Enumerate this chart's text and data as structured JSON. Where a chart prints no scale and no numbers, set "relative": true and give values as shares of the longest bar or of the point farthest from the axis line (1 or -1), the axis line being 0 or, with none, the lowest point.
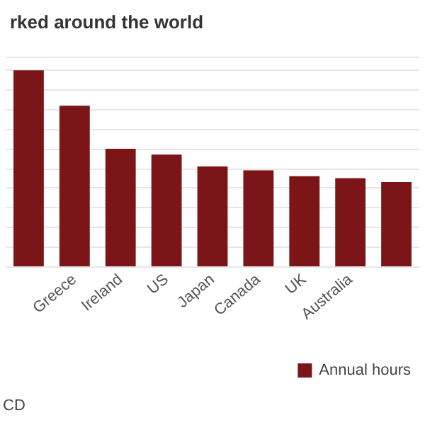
{
  "chart_data": {
    "type": "bar",
    "title": "rked around the world",
    "categories": [
      null,
      "Greece",
      "Ireland",
      "US",
      "Japan",
      "Canada",
      "UK",
      "Australia",
      null
    ],
    "series": [
      {
        "name": "Annual hours",
        "color": "#7b1518",
        "values": [
          1,
          0.82,
          0.6,
          0.57,
          0.51,
          0.49,
          0.46,
          0.45,
          0.43
        ]
      }
    ],
    "relative": true,
    "grid": "y",
    "legend": "bottom right",
    "annotations": [
      "CD"
    ]
  }
}
